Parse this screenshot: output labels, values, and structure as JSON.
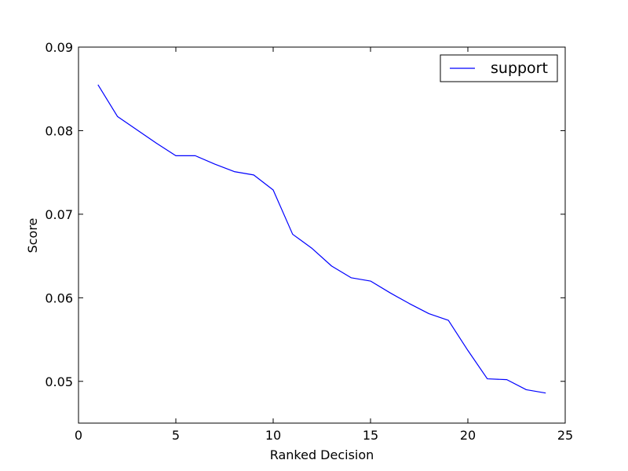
{
  "chart_data": {
    "type": "line",
    "title": "",
    "xlabel": "Ranked Decision",
    "ylabel": "Score",
    "xlim": [
      0,
      25
    ],
    "ylim": [
      0.045,
      0.09
    ],
    "xticks": [
      0,
      5,
      10,
      15,
      20,
      25
    ],
    "xtick_labels": [
      "0",
      "5",
      "10",
      "15",
      "20",
      "25"
    ],
    "yticks": [
      0.05,
      0.06,
      0.07,
      0.08,
      0.09
    ],
    "ytick_labels": [
      "0.05",
      "0.06",
      "0.07",
      "0.08",
      "0.09"
    ],
    "grid": false,
    "legend_position": "top-right",
    "series": [
      {
        "name": "support",
        "color": "#0000ff",
        "x": [
          1,
          2,
          3,
          4,
          5,
          6,
          7,
          8,
          9,
          10,
          11,
          12,
          13,
          14,
          15,
          16,
          17,
          18,
          19,
          20,
          21,
          22,
          23,
          24
        ],
        "y": [
          0.0855,
          0.0817,
          0.0801,
          0.0785,
          0.077,
          0.077,
          0.076,
          0.0751,
          0.0747,
          0.0729,
          0.0676,
          0.0659,
          0.0638,
          0.0624,
          0.062,
          0.0606,
          0.0593,
          0.0581,
          0.0573,
          0.0537,
          0.0503,
          0.0502,
          0.049,
          0.0486
        ]
      }
    ]
  }
}
